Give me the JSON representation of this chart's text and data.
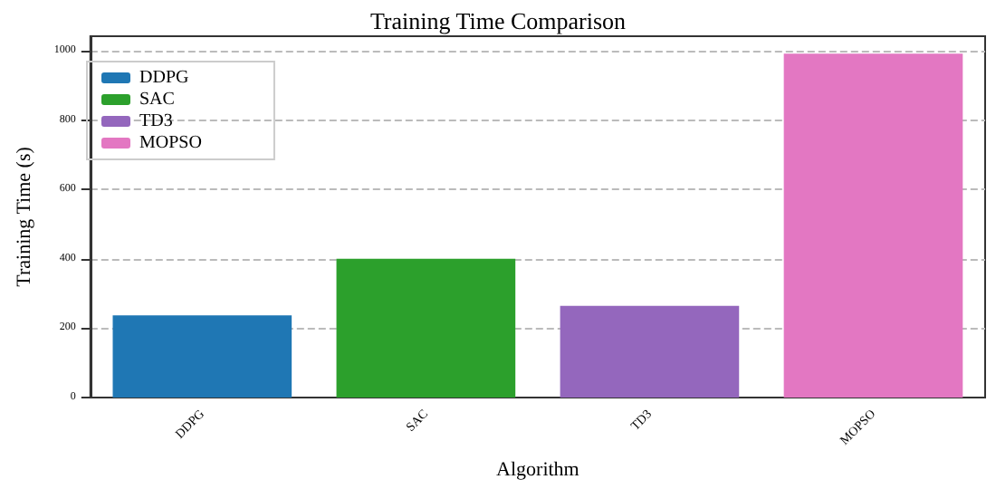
{
  "chart_data": {
    "type": "bar",
    "title": "Training Time Comparison",
    "xlabel": "Algorithm",
    "ylabel": "Training Time (s)",
    "categories": [
      "DDPG",
      "SAC",
      "TD3",
      "MOPSO"
    ],
    "series": [
      {
        "name": "DDPG",
        "color": "#1f77b4",
        "values": [
          237,
          null,
          null,
          null
        ]
      },
      {
        "name": "SAC",
        "color": "#2ca02c",
        "values": [
          null,
          400,
          null,
          null
        ]
      },
      {
        "name": "TD3",
        "color": "#9467bd",
        "values": [
          null,
          null,
          264,
          null
        ]
      },
      {
        "name": "MOPSO",
        "color": "#e377c2",
        "values": [
          null,
          null,
          null,
          992
        ]
      }
    ],
    "ylim": [
      0,
      1042
    ],
    "yticks": [
      0,
      200,
      400,
      600,
      800,
      1000
    ],
    "grid": "y",
    "legend": "top left"
  }
}
